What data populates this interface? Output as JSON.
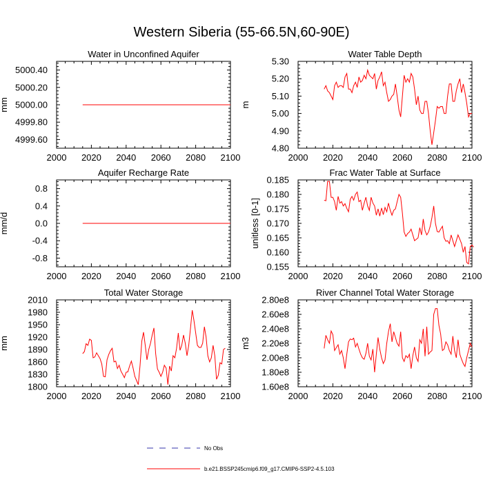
{
  "title": "Western Siberia (55-66.5N,60-90E)",
  "legend": {
    "obs_label": "No Obs",
    "obs_color": "#3333aa",
    "model_label": "b.e21.BSSP245cmip6.f09_g17.CMIP6-SSP2-4.5.103",
    "model_color": "#ff0000"
  },
  "chart_data": [
    {
      "type": "line",
      "title": "Water in Unconfined Aquifer",
      "xlabel": "",
      "ylabel": "mm",
      "xlim": [
        2000,
        2100
      ],
      "ylim": [
        4999.5,
        5000.5
      ],
      "xticks": [
        2000,
        2020,
        2040,
        2060,
        2080,
        2100
      ],
      "yticks": [
        4999.6,
        4999.8,
        5000.0,
        5000.2,
        5000.4
      ],
      "ytick_labels": [
        "4999.60",
        "4999.80",
        "5000.00",
        "5000.20",
        "5000.40"
      ],
      "series": [
        {
          "name": "b.e21.BSSP245cmip6.f09_g17.CMIP6-SSP2-4.5.103",
          "x_start": 2015,
          "x_end": 2100,
          "constant": 5000.0
        }
      ]
    },
    {
      "type": "line",
      "title": "Water Table Depth",
      "xlabel": "",
      "ylabel": "m",
      "xlim": [
        2000,
        2100
      ],
      "ylim": [
        4.8,
        5.3
      ],
      "xticks": [
        2000,
        2020,
        2040,
        2060,
        2080,
        2100
      ],
      "yticks": [
        4.8,
        4.9,
        5.0,
        5.1,
        5.2,
        5.3
      ],
      "ytick_labels": [
        "4.80",
        "4.90",
        "5.00",
        "5.10",
        "5.20",
        "5.30"
      ],
      "series": [
        {
          "name": "b.e21.BSSP245cmip6.f09_g17.CMIP6-SSP2-4.5.103",
          "x_start": 2015,
          "values": [
            5.14,
            5.16,
            5.13,
            5.12,
            5.1,
            5.08,
            5.16,
            5.18,
            5.15,
            5.16,
            5.16,
            5.15,
            5.21,
            5.23,
            5.14,
            5.14,
            5.12,
            5.16,
            5.18,
            5.15,
            5.21,
            5.18,
            5.19,
            5.22,
            5.2,
            5.25,
            5.22,
            5.21,
            5.2,
            5.23,
            5.14,
            5.19,
            5.21,
            5.24,
            5.16,
            5.18,
            5.12,
            5.07,
            5.08,
            5.1,
            5.11,
            5.17,
            5.1,
            5.02,
            4.98,
            5.1,
            5.22,
            5.18,
            5.2,
            5.18,
            5.23,
            5.21,
            5.14,
            5.05,
            5.1,
            5.02,
            5.0,
            5.0,
            5.07,
            5.07,
            5.0,
            4.9,
            4.82,
            4.89,
            4.96,
            5.04,
            5.03,
            5.04,
            5.04,
            5.0,
            5.0,
            5.1,
            5.17,
            5.17,
            5.07,
            5.07,
            5.13,
            5.17,
            5.2,
            5.12,
            5.17,
            5.12,
            5.06,
            4.98,
            5.0,
            5.0
          ]
        }
      ]
    },
    {
      "type": "line",
      "title": "Aquifer Recharge Rate",
      "xlabel": "",
      "ylabel": "mm/d",
      "xlim": [
        2000,
        2100
      ],
      "ylim": [
        -1.0,
        1.0
      ],
      "xticks": [
        2000,
        2020,
        2040,
        2060,
        2080,
        2100
      ],
      "yticks": [
        -0.8,
        -0.4,
        0.0,
        0.4,
        0.8
      ],
      "ytick_labels": [
        "-0.8",
        "-0.4",
        "0.0",
        "0.4",
        "0.8"
      ],
      "series": [
        {
          "name": "b.e21.BSSP245cmip6.f09_g17.CMIP6-SSP2-4.5.103",
          "x_start": 2015,
          "x_end": 2100,
          "constant": 0.0
        }
      ]
    },
    {
      "type": "line",
      "title": "Frac Water Table at Surface",
      "xlabel": "",
      "ylabel": "unitless [0-1]",
      "xlim": [
        2000,
        2100
      ],
      "ylim": [
        0.155,
        0.185
      ],
      "xticks": [
        2000,
        2020,
        2040,
        2060,
        2080,
        2100
      ],
      "yticks": [
        0.155,
        0.16,
        0.165,
        0.17,
        0.175,
        0.18,
        0.185
      ],
      "ytick_labels": [
        "0.155",
        "0.160",
        "0.165",
        "0.170",
        "0.175",
        "0.180",
        "0.185"
      ],
      "series": [
        {
          "name": "b.e21.BSSP245cmip6.f09_g17.CMIP6-SSP2-4.5.103",
          "x_start": 2015,
          "values": [
            0.178,
            0.1778,
            0.1845,
            0.1845,
            0.179,
            0.179,
            0.1775,
            0.1745,
            0.1793,
            0.177,
            0.1775,
            0.176,
            0.1768,
            0.1752,
            0.174,
            0.1783,
            0.1793,
            0.178,
            0.18,
            0.1808,
            0.1775,
            0.178,
            0.1745,
            0.177,
            0.179,
            0.176,
            0.1745,
            0.179,
            0.177,
            0.176,
            0.1728,
            0.175,
            0.1725,
            0.1753,
            0.173,
            0.1755,
            0.174,
            0.177,
            0.1745,
            0.1728,
            0.1745,
            0.175,
            0.1775,
            0.18,
            0.179,
            0.1735,
            0.167,
            0.1655,
            0.1665,
            0.167,
            0.168,
            0.166,
            0.164,
            0.1645,
            0.165,
            0.1685,
            0.166,
            0.1715,
            0.1675,
            0.166,
            0.167,
            0.169,
            0.172,
            0.176,
            0.17,
            0.1672,
            0.167,
            0.168,
            0.169,
            0.165,
            0.1638,
            0.164,
            0.163,
            0.166,
            0.164,
            0.162,
            0.164,
            0.166,
            0.1645,
            0.163,
            0.16,
            0.162,
            0.1565,
            0.156,
            0.162,
            0.1625,
            0.1618
          ]
        }
      ]
    },
    {
      "type": "line",
      "title": "Total Water Storage",
      "xlabel": "",
      "ylabel": "mm",
      "xlim": [
        2000,
        2100
      ],
      "ylim": [
        1800,
        2010
      ],
      "xticks": [
        2000,
        2020,
        2040,
        2060,
        2080,
        2100
      ],
      "yticks": [
        1800,
        1830,
        1860,
        1890,
        1920,
        1950,
        1980,
        2010
      ],
      "ytick_labels": [
        "1800",
        "1830",
        "1860",
        "1890",
        "1920",
        "1950",
        "1980",
        "2010"
      ],
      "series": [
        {
          "name": "b.e21.BSSP245cmip6.f09_g17.CMIP6-SSP2-4.5.103",
          "x_start": 2015,
          "values": [
            1880,
            1885,
            1904,
            1900,
            1915,
            1912,
            1870,
            1872,
            1882,
            1875,
            1868,
            1855,
            1825,
            1824,
            1865,
            1878,
            1887,
            1893,
            1860,
            1862,
            1844,
            1852,
            1838,
            1830,
            1822,
            1835,
            1836,
            1850,
            1862,
            1845,
            1825,
            1815,
            1805,
            1852,
            1910,
            1932,
            1900,
            1865,
            1890,
            1905,
            1925,
            1942,
            1880,
            1843,
            1835,
            1825,
            1835,
            1852,
            1845,
            1805,
            1850,
            1838,
            1875,
            1870,
            1893,
            1930,
            1888,
            1900,
            1925,
            1905,
            1875,
            1900,
            1940,
            1985,
            1960,
            1930,
            1900,
            1895,
            1895,
            1905,
            1945,
            1920,
            1875,
            1860,
            1870,
            1900,
            1875,
            1818,
            1828,
            1858,
            1855,
            1890,
            1893
          ]
        }
      ]
    },
    {
      "type": "line",
      "title": "River Channel Total Water Storage",
      "xlabel": "",
      "ylabel": "m3",
      "xlim": [
        2000,
        2100
      ],
      "ylim": [
        160000000.0,
        280000000.0
      ],
      "xticks": [
        2000,
        2020,
        2040,
        2060,
        2080,
        2100
      ],
      "yticks": [
        160000000.0,
        180000000.0,
        200000000.0,
        220000000.0,
        240000000.0,
        260000000.0,
        280000000.0
      ],
      "ytick_labels": [
        "1.60e8",
        "1.80e8",
        "2.00e8",
        "2.20e8",
        "2.40e8",
        "2.60e8",
        "2.80e8"
      ],
      "series": [
        {
          "name": "b.e21.BSSP245cmip6.f09_g17.CMIP6-SSP2-4.5.103",
          "x_start": 2015,
          "values": [
            213000000.0,
            231000000.0,
            225000000.0,
            220000000.0,
            237000000.0,
            232000000.0,
            210000000.0,
            214000000.0,
            218000000.0,
            205000000.0,
            210000000.0,
            200000000.0,
            185000000.0,
            205000000.0,
            222000000.0,
            226000000.0,
            225000000.0,
            227000000.0,
            215000000.0,
            220000000.0,
            212000000.0,
            205000000.0,
            200000000.0,
            198000000.0,
            206000000.0,
            220000000.0,
            202000000.0,
            197000000.0,
            212000000.0,
            180000000.0,
            205000000.0,
            228000000.0,
            212000000.0,
            200000000.0,
            192000000.0,
            197000000.0,
            220000000.0,
            236000000.0,
            247000000.0,
            222000000.0,
            236000000.0,
            228000000.0,
            220000000.0,
            216000000.0,
            236000000.0,
            200000000.0,
            195000000.0,
            203000000.0,
            200000000.0,
            205000000.0,
            185000000.0,
            203000000.0,
            215000000.0,
            200000000.0,
            195000000.0,
            225000000.0,
            220000000.0,
            240000000.0,
            202000000.0,
            243000000.0,
            205000000.0,
            208000000.0,
            210000000.0,
            260000000.0,
            268000000.0,
            268000000.0,
            245000000.0,
            233000000.0,
            210000000.0,
            212000000.0,
            222000000.0,
            218000000.0,
            210000000.0,
            205000000.0,
            230000000.0,
            210000000.0,
            200000000.0,
            225000000.0,
            205000000.0,
            198000000.0,
            192000000.0,
            188000000.0,
            200000000.0,
            210000000.0,
            220000000.0,
            215000000.0
          ]
        }
      ]
    }
  ]
}
